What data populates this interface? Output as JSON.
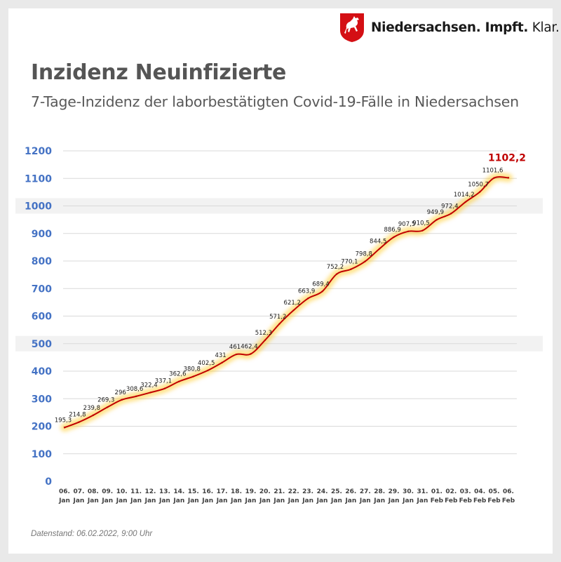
{
  "brand": {
    "name_bold": "Niedersachsen. Impft.",
    "name_light": " Klar.",
    "logo": "lower-saxony-horse-crest-icon",
    "logo_colors": {
      "red": "#d40f14",
      "white": "#ffffff"
    }
  },
  "title": "Inzidenz Neuinfizierte",
  "subtitle": "7-Tage-Inzidenz der laborbestätigten Covid-19-Fälle in Niedersachsen",
  "footnote": "Datenstand: 06.02.2022, 9:00 Uhr",
  "chart_data": {
    "type": "line",
    "title": "Inzidenz Neuinfizierte",
    "subtitle": "7-Tage-Inzidenz der laborbestätigten Covid-19-Fälle in Niedersachsen",
    "xlabel": "",
    "ylabel": "",
    "ylim": [
      0,
      1200
    ],
    "yticks": [
      0,
      100,
      200,
      300,
      400,
      500,
      600,
      700,
      800,
      900,
      1000,
      1100,
      1200
    ],
    "grid": true,
    "highlighted_bands": [
      1000,
      500
    ],
    "colors": {
      "line": "#c00000",
      "glow": "#ffc000",
      "ytick": "#4472c4",
      "highlight_label": "#c00000",
      "band": "#f2f2f2"
    },
    "categories": [
      [
        "06.",
        "Jan"
      ],
      [
        "07.",
        "Jan"
      ],
      [
        "08.",
        "Jan"
      ],
      [
        "09.",
        "Jan"
      ],
      [
        "10.",
        "Jan"
      ],
      [
        "11.",
        "Jan"
      ],
      [
        "12.",
        "Jan"
      ],
      [
        "13.",
        "Jan"
      ],
      [
        "14.",
        "Jan"
      ],
      [
        "15.",
        "Jan"
      ],
      [
        "16.",
        "Jan"
      ],
      [
        "17.",
        "Jan"
      ],
      [
        "18.",
        "Jan"
      ],
      [
        "19.",
        "Jan"
      ],
      [
        "20.",
        "Jan"
      ],
      [
        "21.",
        "Jan"
      ],
      [
        "22.",
        "Jan"
      ],
      [
        "23.",
        "Jan"
      ],
      [
        "24.",
        "Jan"
      ],
      [
        "25.",
        "Jan"
      ],
      [
        "26.",
        "Jan"
      ],
      [
        "27.",
        "Jan"
      ],
      [
        "28.",
        "Jan"
      ],
      [
        "29.",
        "Jan"
      ],
      [
        "30.",
        "Jan"
      ],
      [
        "31.",
        "Jan"
      ],
      [
        "01.",
        "Feb"
      ],
      [
        "02.",
        "Feb"
      ],
      [
        "03.",
        "Feb"
      ],
      [
        "04.",
        "Feb"
      ],
      [
        "05.",
        "Feb"
      ],
      [
        "06.",
        "Feb"
      ]
    ],
    "values": [
      195.3,
      214.8,
      239.8,
      269.3,
      296,
      308.6,
      322.4,
      337.1,
      362.6,
      380.8,
      402.5,
      431,
      461,
      462.4,
      512.3,
      571.2,
      621.2,
      663.9,
      689.4,
      752.2,
      770.1,
      798.8,
      844.5,
      886.9,
      907.5,
      910.5,
      949.9,
      972.4,
      1014.2,
      1050.7,
      1101.6,
      1102.2
    ],
    "labels": [
      "195,3",
      "214,8",
      "239,8",
      "269,3",
      "296",
      "308,6",
      "322,4",
      "337,1",
      "362,6",
      "380,8",
      "402,5",
      "431",
      "461",
      "462,4",
      "512,3",
      "571,2",
      "621,2",
      "663,9",
      "689,4",
      "752,2",
      "770,1",
      "798,8",
      "844,5",
      "886,9",
      "907,5",
      "910,5",
      "949,9",
      "972,4",
      "1014,2",
      "1050,7",
      "1101,6",
      "1102,2"
    ],
    "highlight_last": true
  }
}
